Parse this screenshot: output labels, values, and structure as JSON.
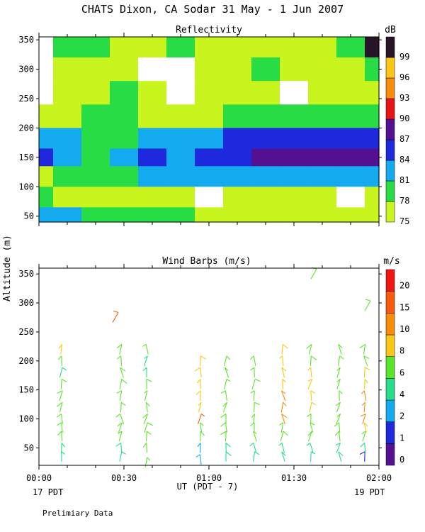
{
  "figure": {
    "title": "CHATS Dixon, CA  Sodar  31 May -  1 Jun 2007",
    "ylabel": "Altitude (m)",
    "xlabel": "UT  (PDT - 7)",
    "left_note": "17 PDT",
    "right_note": "19 PDT",
    "footer": "Prelimiary Data"
  },
  "chart_data": [
    {
      "type": "heatmap",
      "title": "Reflectivity",
      "unit": "dB",
      "x_ticks": [
        "00:00",
        "00:30",
        "01:00",
        "01:30",
        "02:00"
      ],
      "xlim_minutes": [
        0,
        120
      ],
      "y_ticks": [
        50,
        100,
        150,
        200,
        250,
        300,
        350
      ],
      "ylim": [
        40,
        355
      ],
      "colorbar": {
        "levels": [
          75,
          78,
          81,
          84,
          87,
          90,
          93,
          96,
          99
        ],
        "colors": [
          "#c8f51e",
          "#28dc46",
          "#14aaf0",
          "#1e28dc",
          "#550f91",
          "#e61414",
          "#fa8c0a",
          "#fac814",
          "#281428"
        ]
      },
      "values_dB": {
        "altitudes_m": [
          340,
          300,
          260,
          220,
          180,
          150,
          120,
          80,
          50
        ],
        "times_min": [
          0,
          10,
          20,
          30,
          40,
          50,
          60,
          70,
          80,
          90,
          100,
          110,
          120
        ],
        "grid": [
          [
            null,
            78,
            78,
            75,
            75,
            78,
            75,
            75,
            75,
            75,
            75,
            78,
            99
          ],
          [
            null,
            75,
            75,
            75,
            72,
            72,
            75,
            75,
            78,
            75,
            75,
            75,
            78
          ],
          [
            null,
            75,
            75,
            78,
            75,
            72,
            75,
            75,
            75,
            72,
            75,
            75,
            75
          ],
          [
            75,
            75,
            78,
            78,
            75,
            75,
            75,
            78,
            78,
            78,
            78,
            78,
            78
          ],
          [
            81,
            81,
            78,
            78,
            81,
            81,
            81,
            84,
            84,
            84,
            84,
            84,
            84
          ],
          [
            84,
            81,
            78,
            81,
            84,
            81,
            84,
            84,
            87,
            87,
            87,
            87,
            87
          ],
          [
            75,
            78,
            78,
            78,
            81,
            81,
            81,
            81,
            81,
            81,
            81,
            81,
            81
          ],
          [
            78,
            75,
            75,
            75,
            75,
            75,
            72,
            75,
            75,
            75,
            75,
            72,
            75
          ],
          [
            81,
            81,
            78,
            78,
            78,
            78,
            75,
            75,
            75,
            75,
            75,
            75,
            75
          ]
        ]
      }
    },
    {
      "type": "scatter",
      "title": "Wind Barbs (m/s)",
      "unit": "m/s",
      "x_ticks": [
        "00:00",
        "00:30",
        "01:00",
        "01:30",
        "02:00"
      ],
      "xlim_minutes": [
        0,
        120
      ],
      "y_ticks": [
        50,
        100,
        150,
        200,
        250,
        300,
        350
      ],
      "ylim": [
        20,
        360
      ],
      "colorbar": {
        "labels": [
          "0",
          "1",
          "2",
          "4",
          "6",
          "8",
          "10",
          "15",
          "20"
        ],
        "colors": [
          "#550f91",
          "#1e28dc",
          "#14aaf0",
          "#28dc8c",
          "#5ae628",
          "#fac814",
          "#fa8c0a",
          "#fa5a0a",
          "#f01414"
        ]
      },
      "profiles": [
        {
          "time_min": 8,
          "altitude_m": [
            35,
            50,
            70,
            85,
            100,
            120,
            140,
            160,
            180,
            200,
            220
          ],
          "speed_level": [
            3,
            3,
            4,
            4,
            4,
            4,
            4,
            4,
            3,
            4,
            5
          ]
        },
        {
          "time_min": 29,
          "altitude_m": [
            35,
            50,
            70,
            85,
            100,
            120,
            140,
            160,
            180,
            200,
            220
          ],
          "speed_level": [
            3,
            3,
            4,
            4,
            4,
            4,
            4,
            4,
            4,
            4,
            4
          ]
        },
        {
          "time_min": 27,
          "altitude_m": [
            275
          ],
          "speed_level": [
            7
          ]
        },
        {
          "time_min": 38,
          "altitude_m": [
            25,
            50,
            70,
            85,
            100,
            120,
            140,
            160,
            180,
            200,
            220
          ],
          "speed_level": [
            4,
            4,
            4,
            4,
            4,
            4,
            4,
            4,
            3,
            3,
            4
          ]
        },
        {
          "time_min": 57,
          "altitude_m": [
            30,
            50,
            70,
            85,
            100,
            120,
            140,
            160,
            180,
            200
          ],
          "speed_level": [
            2,
            2,
            4,
            4,
            7,
            5,
            5,
            5,
            5,
            5
          ]
        },
        {
          "time_min": 66,
          "altitude_m": [
            35,
            50,
            70,
            85,
            100,
            120,
            140,
            160,
            180,
            200
          ],
          "speed_level": [
            3,
            3,
            4,
            4,
            4,
            4,
            4,
            4,
            4,
            4
          ]
        },
        {
          "time_min": 76,
          "altitude_m": [
            35,
            50,
            70,
            85,
            100,
            120,
            140,
            160,
            180,
            200
          ],
          "speed_level": [
            3,
            3,
            4,
            4,
            4,
            4,
            4,
            4,
            4,
            4
          ]
        },
        {
          "time_min": 86,
          "altitude_m": [
            35,
            50,
            70,
            85,
            100,
            120,
            140,
            160,
            180,
            200,
            220
          ],
          "speed_level": [
            3,
            3,
            4,
            4,
            6,
            6,
            6,
            5,
            5,
            5,
            5
          ]
        },
        {
          "time_min": 96,
          "altitude_m": [
            35,
            50,
            70,
            85,
            100,
            120,
            140,
            160,
            180,
            200,
            220
          ],
          "speed_level": [
            3,
            3,
            4,
            4,
            4,
            5,
            5,
            5,
            5,
            4,
            4
          ]
        },
        {
          "time_min": 97,
          "altitude_m": [
            350
          ],
          "speed_level": [
            4
          ]
        },
        {
          "time_min": 106,
          "altitude_m": [
            35,
            50,
            70,
            85,
            100,
            120,
            140,
            160,
            180,
            200,
            220
          ],
          "speed_level": [
            3,
            3,
            4,
            4,
            4,
            4,
            4,
            4,
            4,
            4,
            4
          ]
        },
        {
          "time_min": 115,
          "altitude_m": [
            35,
            50,
            70,
            85,
            100,
            120,
            140,
            160,
            180,
            200,
            220
          ],
          "speed_level": [
            1,
            3,
            4,
            5,
            6,
            6,
            6,
            5,
            5,
            4,
            4
          ]
        },
        {
          "time_min": 116,
          "altitude_m": [
            295
          ],
          "speed_level": [
            4
          ]
        }
      ]
    }
  ]
}
